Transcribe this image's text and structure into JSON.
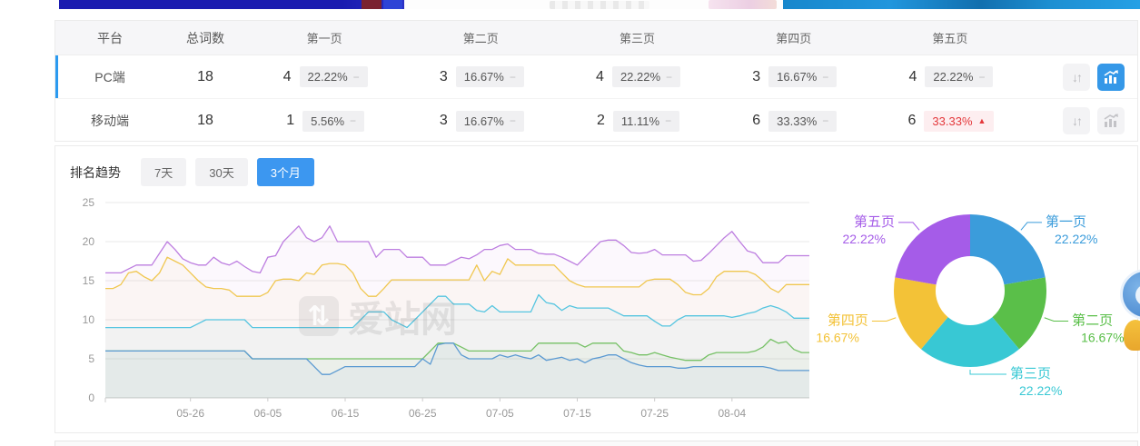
{
  "table": {
    "headers": [
      "平台",
      "总词数",
      "第一页",
      "第二页",
      "第三页",
      "第四页",
      "第五页"
    ],
    "rows": [
      {
        "platform": "PC端",
        "total": "18",
        "active": true,
        "pages": [
          {
            "count": "4",
            "pct": "22.22%",
            "state": "flat",
            "symbol": "−"
          },
          {
            "count": "3",
            "pct": "16.67%",
            "state": "flat",
            "symbol": "−"
          },
          {
            "count": "4",
            "pct": "22.22%",
            "state": "flat",
            "symbol": "−"
          },
          {
            "count": "3",
            "pct": "16.67%",
            "state": "flat",
            "symbol": "−"
          },
          {
            "count": "4",
            "pct": "22.22%",
            "state": "flat",
            "symbol": "−"
          }
        ]
      },
      {
        "platform": "移动端",
        "total": "18",
        "active": false,
        "pages": [
          {
            "count": "1",
            "pct": "5.56%",
            "state": "flat",
            "symbol": "−"
          },
          {
            "count": "3",
            "pct": "16.67%",
            "state": "flat",
            "symbol": "−"
          },
          {
            "count": "2",
            "pct": "11.11%",
            "state": "flat",
            "symbol": "−"
          },
          {
            "count": "6",
            "pct": "33.33%",
            "state": "flat",
            "symbol": "−"
          },
          {
            "count": "6",
            "pct": "33.33%",
            "state": "up",
            "symbol": "▲"
          }
        ]
      }
    ]
  },
  "icons": {
    "sort": "↓↑",
    "watermark_glyph": "⇅"
  },
  "trend": {
    "label": "排名趋势",
    "ranges": [
      "7天",
      "30天",
      "3个月"
    ],
    "active_range": "3个月"
  },
  "watermark": {
    "text": "爱站网"
  },
  "colors": {
    "accent_blue": "#3c97f0",
    "active_row_border": "#2b9af0",
    "badge_up_red": "#e4393c",
    "grid": "#e9e9e9",
    "axis": "#cccccc",
    "tick_text": "#999999"
  },
  "chart_data": [
    {
      "type": "line",
      "title": "排名趋势 3个月",
      "ylim": [
        0,
        25
      ],
      "y_ticks": [
        0,
        5,
        10,
        15,
        20,
        25
      ],
      "x_ticks": [
        "05-26",
        "06-05",
        "06-15",
        "06-25",
        "07-05",
        "07-15",
        "07-25",
        "08-04"
      ],
      "tick_start_index": 11,
      "tick_step": 10,
      "grid": true,
      "legend": "none",
      "series": [
        {
          "name": "第五页",
          "color": "#bd7ee0",
          "values": [
            16,
            16,
            16,
            16.5,
            17,
            17,
            17,
            18.5,
            20,
            19,
            17.8,
            17.3,
            17,
            17,
            18,
            17.3,
            17,
            17.5,
            16.8,
            16.2,
            16,
            18,
            18.2,
            20,
            21,
            22,
            20.5,
            20,
            20.5,
            22,
            20,
            20,
            20,
            20,
            20,
            18,
            19,
            19,
            19,
            18,
            18,
            18,
            17,
            17,
            17,
            17.5,
            18,
            17.8,
            18.3,
            19,
            19,
            19.5,
            19.7,
            19,
            19,
            19,
            18.5,
            18.4,
            18.4,
            18,
            17.5,
            17,
            18,
            19,
            20,
            20.2,
            20.2,
            19.5,
            18.6,
            18.5,
            18.6,
            19,
            18.3,
            18.3,
            18.3,
            18.3,
            17.5,
            17.6,
            18.5,
            19.5,
            20.5,
            21.3,
            20,
            18.8,
            18.5,
            17.3,
            17.3,
            17.3,
            18.2,
            18.2,
            18.2,
            18.2
          ]
        },
        {
          "name": "第四页",
          "color": "#f0c750",
          "values": [
            14,
            14,
            14.5,
            16,
            16.2,
            15.5,
            15,
            16,
            18,
            17.5,
            17,
            16,
            15,
            14.2,
            14,
            14,
            13.8,
            13,
            13,
            13,
            13,
            13.5,
            15,
            15.2,
            15.2,
            15,
            16,
            15.8,
            17,
            17.2,
            17.2,
            17,
            16,
            14,
            13,
            13,
            14,
            15.1,
            15.1,
            15.1,
            15.1,
            15.1,
            15.1,
            15.1,
            15.1,
            15.1,
            15.1,
            15.1,
            17,
            15,
            16.2,
            15.8,
            17.8,
            17,
            17,
            17,
            17,
            17,
            17,
            16,
            15,
            14.5,
            14.2,
            14.2,
            14.2,
            14.2,
            14.2,
            14.2,
            14.2,
            14.2,
            15,
            15.2,
            15.2,
            15.2,
            14.5,
            13.5,
            13.2,
            13.2,
            14,
            15.5,
            16.2,
            16.2,
            16.2,
            16.2,
            15.8,
            15,
            14,
            13.5,
            14.5,
            14.5,
            14.5,
            14.5
          ]
        },
        {
          "name": "第三页",
          "color": "#55c5e0",
          "values": [
            9,
            9,
            9,
            9,
            9,
            9,
            9,
            9,
            9,
            9,
            9,
            9,
            9.5,
            10,
            10,
            10,
            10,
            10,
            10,
            9,
            9,
            9,
            9,
            9,
            9,
            9,
            9,
            9,
            9,
            9,
            9,
            9,
            9,
            10,
            11,
            11,
            11,
            10,
            9.5,
            9,
            10,
            11,
            12,
            13,
            13,
            12,
            12,
            12,
            11.2,
            11,
            11.8,
            11,
            11,
            11,
            11,
            11,
            13.2,
            12.2,
            12,
            11.2,
            11.8,
            11.5,
            11.5,
            11.5,
            11.5,
            11.5,
            11,
            10.5,
            10.5,
            10.5,
            10.5,
            9.8,
            9.2,
            9.2,
            10,
            10.5,
            10.5,
            10.5,
            10.5,
            10.5,
            10.5,
            10.3,
            10.5,
            10.8,
            11,
            11.5,
            11.8,
            11.5,
            11,
            10.2,
            10.2,
            10.2
          ]
        },
        {
          "name": "第二页",
          "color": "#76c166",
          "values": [
            6,
            6,
            6,
            6,
            6,
            6,
            6,
            6,
            6,
            6,
            6,
            6,
            6,
            6,
            6,
            6,
            6,
            6,
            6,
            5,
            5,
            5,
            5,
            5,
            5,
            5,
            5,
            5,
            5,
            5,
            5,
            5,
            5,
            5,
            5,
            5,
            5,
            5,
            5,
            5,
            5,
            5,
            6,
            7,
            7,
            7,
            6.5,
            6,
            6,
            6,
            6,
            6,
            6,
            6,
            6,
            6,
            7,
            7,
            7,
            7,
            7,
            7,
            6.5,
            7,
            7,
            7,
            7,
            6,
            5.8,
            5.5,
            5.5,
            5.8,
            5.5,
            5.2,
            5,
            4.8,
            4.8,
            4.8,
            5.5,
            5.8,
            5.8,
            5.8,
            5.8,
            5.8,
            6,
            6.5,
            7.5,
            7,
            7.2,
            6.2,
            5.8,
            5.8
          ]
        },
        {
          "name": "第一页",
          "color": "#5b9ad2",
          "values": [
            6,
            6,
            6,
            6,
            6,
            6,
            6,
            6,
            6,
            6,
            6,
            6,
            6,
            6,
            6,
            6,
            6,
            6,
            6,
            5,
            5,
            5,
            5,
            5,
            5,
            5,
            5,
            4,
            3,
            3,
            3.5,
            4,
            4,
            4,
            4,
            4,
            4,
            4,
            4,
            4,
            4,
            5,
            4.3,
            6.8,
            7,
            7,
            5.5,
            5,
            5,
            5,
            5,
            5.5,
            5.2,
            5.5,
            5.2,
            5,
            5.5,
            4.8,
            5,
            5.2,
            4.8,
            5,
            4.5,
            5,
            5.2,
            5.5,
            5.5,
            5,
            4.5,
            4.2,
            4,
            4,
            4,
            4,
            3.8,
            3.8,
            4,
            4,
            4,
            4,
            4,
            4,
            4,
            4,
            4,
            4,
            3.8,
            3.5,
            3.5,
            3.5,
            3.5,
            3.5
          ]
        }
      ]
    },
    {
      "type": "pie",
      "title": "页面分布",
      "donut": true,
      "slices": [
        {
          "label": "第一页",
          "pct": 22.22,
          "display": "22.22%",
          "color": "#3b9cdb"
        },
        {
          "label": "第二页",
          "pct": 16.67,
          "display": "16.67%",
          "color": "#5abf49"
        },
        {
          "label": "第三页",
          "pct": 22.22,
          "display": "22.22%",
          "color": "#38c8d4"
        },
        {
          "label": "第四页",
          "pct": 16.67,
          "display": "16.67%",
          "color": "#f3c237"
        },
        {
          "label": "第五页",
          "pct": 22.22,
          "display": "22.22%",
          "color": "#a55ce8"
        }
      ]
    }
  ]
}
